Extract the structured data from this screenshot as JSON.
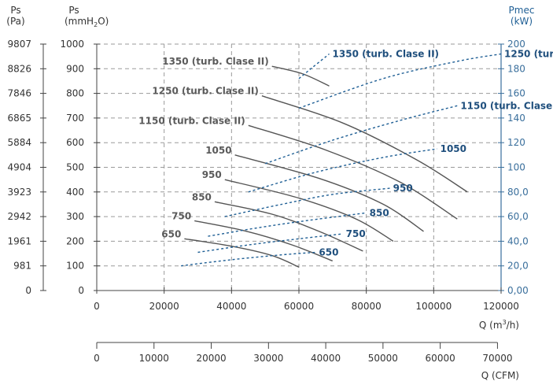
{
  "chart_data": {
    "type": "line",
    "title": "",
    "left_axis_1": {
      "title": "Ps",
      "unit": "(Pa)",
      "ticks": [
        "9807",
        "8826",
        "7846",
        "6865",
        "5884",
        "4904",
        "3923",
        "2942",
        "1961",
        "981",
        "0"
      ]
    },
    "left_axis_2": {
      "title": "Ps",
      "unit_main": "(mmH",
      "unit_sub": "2",
      "unit_end": "O)",
      "ylim": [
        0,
        1000
      ],
      "ticks": [
        1000,
        900,
        800,
        700,
        600,
        500,
        400,
        300,
        200,
        100,
        0
      ]
    },
    "right_axis": {
      "title": "Pmec",
      "unit": "(kW)",
      "ylim": [
        0,
        200
      ],
      "ticks": [
        "200",
        "180",
        "160",
        "140",
        "120",
        "100",
        "80,0",
        "60,0",
        "40,0",
        "20,0",
        "0,00"
      ]
    },
    "x_axis_1": {
      "label_main": "Q (m",
      "label_sup": "3",
      "label_end": "/h)",
      "xlim": [
        0,
        120000
      ],
      "ticks": [
        0,
        20000,
        40000,
        60000,
        80000,
        100000,
        120000
      ]
    },
    "x_axis_2": {
      "label": "Q (CFM)",
      "xlim": [
        0,
        70000
      ],
      "ticks": [
        0,
        10000,
        20000,
        30000,
        40000,
        50000,
        60000,
        70000
      ]
    },
    "grid": true,
    "colors": {
      "pressure": "#555555",
      "power": "#1f5f95",
      "grid": "#9a9a9a",
      "right_axis": "#3a6f9c"
    },
    "pressure_curves": [
      {
        "name": "650",
        "points": [
          [
            26000,
            210
          ],
          [
            40000,
            180
          ],
          [
            52000,
            142
          ],
          [
            60000,
            95
          ]
        ]
      },
      {
        "name": "750",
        "points": [
          [
            29000,
            283
          ],
          [
            44000,
            242
          ],
          [
            58000,
            185
          ],
          [
            70000,
            120
          ]
        ]
      },
      {
        "name": "850",
        "points": [
          [
            35000,
            360
          ],
          [
            52000,
            310
          ],
          [
            66000,
            240
          ],
          [
            79000,
            160
          ]
        ]
      },
      {
        "name": "950",
        "points": [
          [
            38000,
            450
          ],
          [
            60000,
            375
          ],
          [
            77000,
            290
          ],
          [
            88000,
            200
          ]
        ]
      },
      {
        "name": "1050",
        "points": [
          [
            41000,
            550
          ],
          [
            66000,
            455
          ],
          [
            85000,
            350
          ],
          [
            97000,
            240
          ]
        ]
      },
      {
        "name": "1150 (turb. Clase II)",
        "points": [
          [
            45000,
            670
          ],
          [
            68000,
            570
          ],
          [
            90000,
            440
          ],
          [
            107000,
            290
          ]
        ]
      },
      {
        "name": "1250 (turb. Clase II)",
        "points": [
          [
            49000,
            790
          ],
          [
            73000,
            680
          ],
          [
            95000,
            530
          ],
          [
            110000,
            400
          ]
        ]
      },
      {
        "name": "1350 (turb. Clase II)",
        "points": [
          [
            52000,
            910
          ],
          [
            61000,
            880
          ],
          [
            69000,
            830
          ]
        ]
      }
    ],
    "power_curves": [
      {
        "name": "650",
        "points": [
          [
            25000,
            20
          ],
          [
            40000,
            25
          ],
          [
            55000,
            29
          ],
          [
            65000,
            31
          ]
        ]
      },
      {
        "name": "750",
        "points": [
          [
            30000,
            31
          ],
          [
            45000,
            37
          ],
          [
            60000,
            42
          ],
          [
            73000,
            46
          ]
        ]
      },
      {
        "name": "850",
        "points": [
          [
            33000,
            44
          ],
          [
            48000,
            51
          ],
          [
            63000,
            57
          ],
          [
            80000,
            63
          ]
        ]
      },
      {
        "name": "950",
        "points": [
          [
            38000,
            60
          ],
          [
            55000,
            70
          ],
          [
            70000,
            78
          ],
          [
            87000,
            83
          ]
        ]
      },
      {
        "name": "1050",
        "points": [
          [
            45000,
            80
          ],
          [
            65000,
            96
          ],
          [
            85000,
            108
          ],
          [
            101000,
            115
          ]
        ]
      },
      {
        "name": "1150 (turb. Clase II)",
        "points": [
          [
            50000,
            103
          ],
          [
            70000,
            122
          ],
          [
            90000,
            138
          ],
          [
            107000,
            150
          ]
        ]
      },
      {
        "name": "1250 (turb. Clase II)",
        "points": [
          [
            60000,
            148
          ],
          [
            85000,
            172
          ],
          [
            107000,
            186
          ],
          [
            120000,
            192
          ]
        ]
      },
      {
        "name": "1350 (turb. Clase II)",
        "points": [
          [
            60000,
            172
          ],
          [
            64000,
            181
          ],
          [
            69000,
            192
          ]
        ]
      }
    ]
  }
}
